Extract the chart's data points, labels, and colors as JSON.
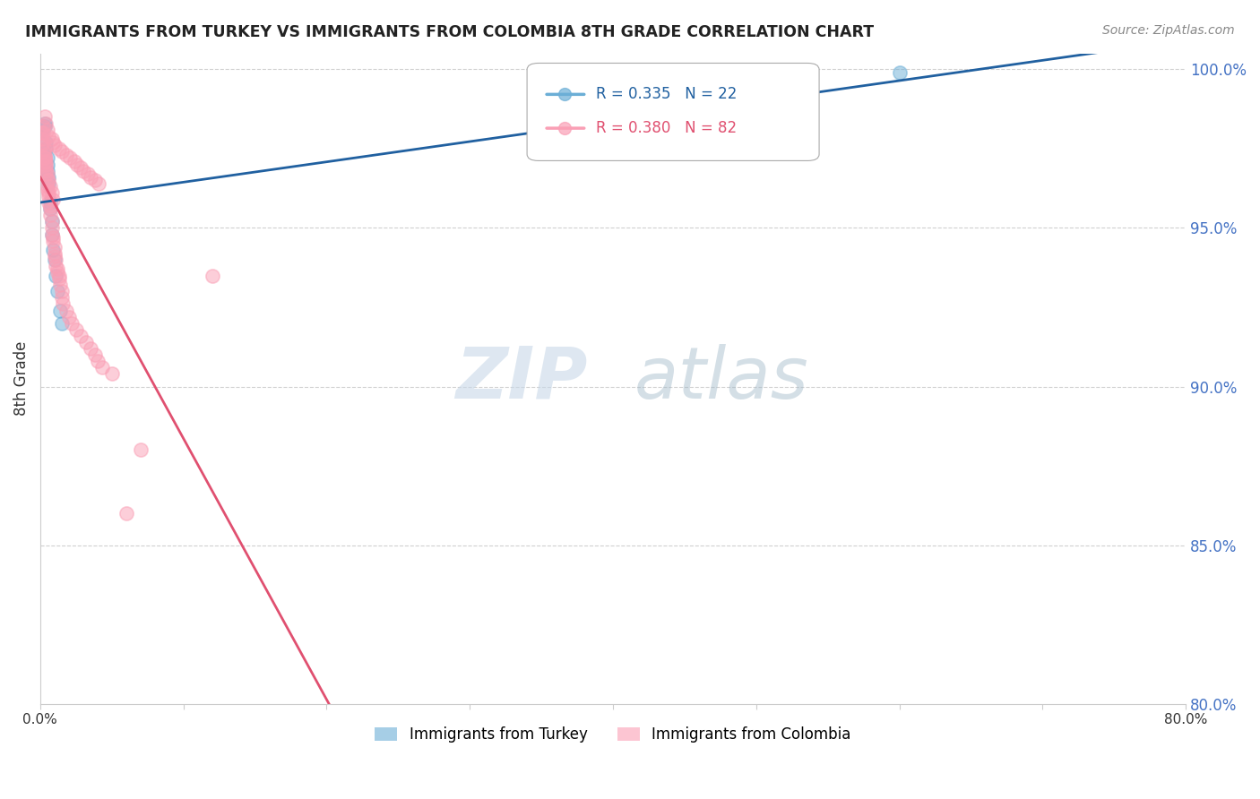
{
  "title": "IMMIGRANTS FROM TURKEY VS IMMIGRANTS FROM COLOMBIA 8TH GRADE CORRELATION CHART",
  "source": "Source: ZipAtlas.com",
  "ylabel": "8th Grade",
  "xmin": 0.0,
  "xmax": 0.8,
  "ymin": 0.8,
  "ymax": 1.005,
  "turkey_color": "#6baed6",
  "colombia_color": "#fa9fb5",
  "turkey_line_color": "#2060a0",
  "colombia_line_color": "#e05070",
  "turkey_R": 0.335,
  "turkey_N": 22,
  "colombia_R": 0.38,
  "colombia_N": 82,
  "turkey_x": [
    0.001,
    0.002,
    0.003,
    0.003,
    0.004,
    0.004,
    0.005,
    0.005,
    0.005,
    0.006,
    0.006,
    0.007,
    0.007,
    0.008,
    0.008,
    0.009,
    0.01,
    0.011,
    0.012,
    0.014,
    0.6,
    0.015
  ],
  "turkey_y": [
    0.98,
    0.982,
    0.983,
    0.982,
    0.975,
    0.977,
    0.972,
    0.97,
    0.968,
    0.966,
    0.964,
    0.958,
    0.956,
    0.952,
    0.948,
    0.943,
    0.94,
    0.935,
    0.93,
    0.924,
    0.999,
    0.92
  ],
  "colombia_x": [
    0.001,
    0.001,
    0.002,
    0.002,
    0.002,
    0.003,
    0.003,
    0.003,
    0.004,
    0.004,
    0.004,
    0.004,
    0.005,
    0.005,
    0.005,
    0.006,
    0.006,
    0.006,
    0.007,
    0.007,
    0.007,
    0.008,
    0.008,
    0.008,
    0.009,
    0.009,
    0.01,
    0.01,
    0.01,
    0.011,
    0.011,
    0.012,
    0.012,
    0.013,
    0.013,
    0.014,
    0.015,
    0.015,
    0.016,
    0.018,
    0.02,
    0.022,
    0.025,
    0.028,
    0.032,
    0.035,
    0.038,
    0.04,
    0.043,
    0.05,
    0.001,
    0.002,
    0.003,
    0.003,
    0.004,
    0.005,
    0.006,
    0.007,
    0.008,
    0.009,
    0.003,
    0.004,
    0.005,
    0.006,
    0.008,
    0.009,
    0.01,
    0.013,
    0.015,
    0.018,
    0.021,
    0.024,
    0.026,
    0.028,
    0.03,
    0.033,
    0.035,
    0.038,
    0.041,
    0.12,
    0.07,
    0.06
  ],
  "colombia_y": [
    0.98,
    0.978,
    0.982,
    0.98,
    0.977,
    0.975,
    0.973,
    0.972,
    0.971,
    0.97,
    0.968,
    0.967,
    0.965,
    0.963,
    0.962,
    0.961,
    0.96,
    0.958,
    0.957,
    0.956,
    0.954,
    0.952,
    0.95,
    0.948,
    0.947,
    0.946,
    0.944,
    0.942,
    0.941,
    0.94,
    0.938,
    0.937,
    0.936,
    0.935,
    0.934,
    0.932,
    0.93,
    0.928,
    0.926,
    0.924,
    0.922,
    0.92,
    0.918,
    0.916,
    0.914,
    0.912,
    0.91,
    0.908,
    0.906,
    0.904,
    0.976,
    0.974,
    0.972,
    0.971,
    0.969,
    0.967,
    0.965,
    0.963,
    0.961,
    0.959,
    0.985,
    0.983,
    0.981,
    0.979,
    0.978,
    0.977,
    0.976,
    0.975,
    0.974,
    0.973,
    0.972,
    0.971,
    0.97,
    0.969,
    0.968,
    0.967,
    0.966,
    0.965,
    0.964,
    0.935,
    0.88,
    0.86
  ],
  "watermark_zip_color": "#c8d8e8",
  "watermark_atlas_color": "#a0b8c8",
  "background_color": "#ffffff",
  "tick_color": "#4472c4",
  "grid_color": "#d0d0d0"
}
